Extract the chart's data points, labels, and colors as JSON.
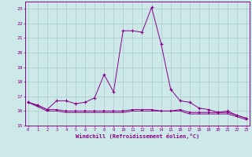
{
  "xlabel": "Windchill (Refroidissement éolien,°C)",
  "background_color": "#cce8e8",
  "line_color": "#880088",
  "grid_color": "#aacccc",
  "x_values": [
    0,
    1,
    2,
    3,
    4,
    5,
    6,
    7,
    8,
    9,
    10,
    11,
    12,
    13,
    14,
    15,
    16,
    17,
    18,
    19,
    20,
    21,
    22,
    23
  ],
  "series1": [
    16.6,
    16.4,
    16.1,
    16.7,
    16.7,
    16.5,
    16.6,
    16.9,
    18.5,
    17.3,
    21.5,
    21.5,
    21.4,
    23.1,
    20.6,
    17.5,
    16.7,
    16.6,
    16.2,
    16.1,
    15.9,
    16.0,
    15.7,
    15.5
  ],
  "series2": [
    16.6,
    16.4,
    16.1,
    16.1,
    16.0,
    16.0,
    16.0,
    16.0,
    16.0,
    16.0,
    16.0,
    16.1,
    16.1,
    16.1,
    16.0,
    16.0,
    16.1,
    15.9,
    15.9,
    15.9,
    15.9,
    15.9,
    15.7,
    15.5
  ],
  "series3": [
    16.6,
    16.3,
    16.0,
    16.0,
    15.9,
    15.9,
    15.9,
    15.9,
    15.9,
    15.9,
    15.9,
    16.0,
    16.0,
    16.0,
    16.0,
    16.0,
    16.0,
    15.8,
    15.8,
    15.8,
    15.8,
    15.8,
    15.6,
    15.4
  ],
  "ylim": [
    15,
    23.5
  ],
  "xlim": [
    -0.3,
    23.3
  ],
  "yticks": [
    15,
    16,
    17,
    18,
    19,
    20,
    21,
    22,
    23
  ],
  "xticks": [
    0,
    1,
    2,
    3,
    4,
    5,
    6,
    7,
    8,
    9,
    10,
    11,
    12,
    13,
    14,
    15,
    16,
    17,
    18,
    19,
    20,
    21,
    22,
    23
  ]
}
